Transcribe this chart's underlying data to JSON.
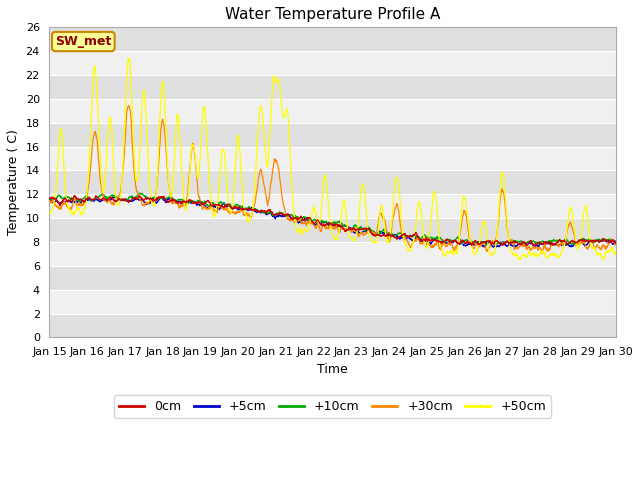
{
  "title": "Water Temperature Profile A",
  "xlabel": "Time",
  "ylabel": "Temperature ( C)",
  "xlim": [
    0,
    15
  ],
  "ylim": [
    0,
    26
  ],
  "yticks": [
    0,
    2,
    4,
    6,
    8,
    10,
    12,
    14,
    16,
    18,
    20,
    22,
    24,
    26
  ],
  "xtick_labels": [
    "Jan 15",
    "Jan 16",
    "Jan 17",
    "Jan 18",
    "Jan 19",
    "Jan 20",
    "Jan 21",
    "Jan 22",
    "Jan 23",
    "Jan 24",
    "Jan 25",
    "Jan 26",
    "Jan 27",
    "Jan 28",
    "Jan 29",
    "Jan 30"
  ],
  "colors": {
    "0cm": "#cc0000",
    "+5cm": "#0000cc",
    "+10cm": "#00aa00",
    "+30cm": "#ff8800",
    "+50cm": "#ffff00"
  },
  "legend_labels": [
    "0cm",
    "+5cm",
    "+10cm",
    "+30cm",
    "+50cm"
  ],
  "fig_bg": "#ffffff",
  "plot_bg_light": "#f0f0f0",
  "plot_bg_dark": "#e0e0e0",
  "grid_color": "#ffffff",
  "annotation_text": "SW_met",
  "annotation_color": "#8b0000",
  "annotation_bg": "#ffff99",
  "annotation_border": "#cc8800",
  "title_fontsize": 11,
  "axis_fontsize": 9,
  "tick_fontsize": 8
}
